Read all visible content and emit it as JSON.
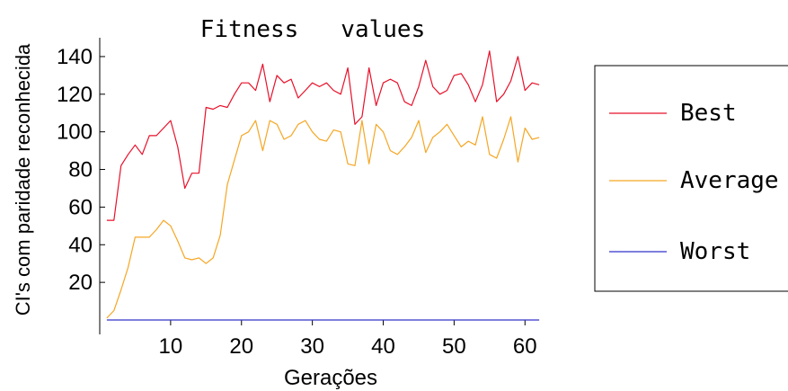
{
  "chart_data": {
    "type": "line",
    "title": "Fitness   values",
    "xlabel": "Gerações",
    "ylabel": "CI's com paridade reconhecida",
    "xlim": [
      0,
      62.5
    ],
    "ylim": [
      0,
      150
    ],
    "xticks": [
      10,
      20,
      30,
      40,
      50,
      60
    ],
    "yticks": [
      20,
      40,
      60,
      80,
      100,
      120,
      140
    ],
    "grid": false,
    "legend_position": "right",
    "x": [
      1,
      2,
      3,
      4,
      5,
      6,
      7,
      8,
      9,
      10,
      11,
      12,
      13,
      14,
      15,
      16,
      17,
      18,
      19,
      20,
      21,
      22,
      23,
      24,
      25,
      26,
      27,
      28,
      29,
      30,
      31,
      32,
      33,
      34,
      35,
      36,
      37,
      38,
      39,
      40,
      41,
      42,
      43,
      44,
      45,
      46,
      47,
      48,
      49,
      50,
      51,
      52,
      53,
      54,
      55,
      56,
      57,
      58,
      59,
      60,
      61,
      62
    ],
    "series": [
      {
        "name": "Best",
        "color": "#e8102a",
        "values": [
          53,
          53,
          82,
          88,
          93,
          88,
          98,
          98,
          102,
          106,
          92,
          70,
          78,
          78,
          113,
          112,
          114,
          113,
          120,
          126,
          126,
          122,
          136,
          116,
          130,
          126,
          128,
          118,
          122,
          126,
          124,
          126,
          122,
          120,
          134,
          104,
          108,
          134,
          114,
          126,
          128,
          126,
          116,
          114,
          124,
          138,
          124,
          120,
          122,
          130,
          131,
          125,
          116,
          125,
          143,
          116,
          120,
          127,
          140,
          122,
          126,
          125
        ]
      },
      {
        "name": "Average",
        "color": "#f5a623",
        "values": [
          1,
          5,
          16,
          28,
          44,
          44,
          44,
          48,
          53,
          50,
          42,
          33,
          32,
          33,
          30,
          33,
          45,
          72,
          85,
          98,
          100,
          106,
          90,
          106,
          104,
          96,
          98,
          104,
          106,
          100,
          96,
          95,
          101,
          100,
          83,
          82,
          106,
          83,
          104,
          100,
          90,
          88,
          92,
          97,
          106,
          89,
          97,
          100,
          104,
          98,
          92,
          95,
          93,
          108,
          88,
          86,
          96,
          108,
          84,
          102,
          96,
          97
        ]
      },
      {
        "name": "Worst",
        "color": "#3333cc",
        "values": [
          0,
          0,
          0,
          0,
          0,
          0,
          0,
          0,
          0,
          0,
          0,
          0,
          0,
          0,
          0,
          0,
          0,
          0,
          0,
          0,
          0,
          0,
          0,
          0,
          0,
          0,
          0,
          0,
          0,
          0,
          0,
          0,
          0,
          0,
          0,
          0,
          0,
          0,
          0,
          0,
          0,
          0,
          0,
          0,
          0,
          0,
          0,
          0,
          0,
          0,
          0,
          0,
          0,
          0,
          0,
          0,
          0,
          0,
          0,
          0,
          0,
          0
        ]
      }
    ]
  }
}
